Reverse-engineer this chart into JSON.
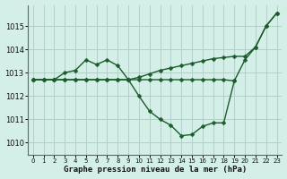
{
  "title": "Graphe pression niveau de la mer (hPa)",
  "background_color": "#d4eee8",
  "grid_color": "#b0d0cc",
  "line_color": "#1a5c2a",
  "xlim": [
    -0.5,
    23.5
  ],
  "ylim": [
    1009.5,
    1015.9
  ],
  "yticks": [
    1010,
    1011,
    1012,
    1013,
    1014,
    1015
  ],
  "xticks": [
    0,
    1,
    2,
    3,
    4,
    5,
    6,
    7,
    8,
    9,
    10,
    11,
    12,
    13,
    14,
    15,
    16,
    17,
    18,
    19,
    20,
    21,
    22,
    23
  ],
  "series": {
    "line_hump": {
      "x": [
        0,
        1,
        2,
        3,
        4,
        5,
        6,
        7,
        8,
        9
      ],
      "y": [
        1012.7,
        1012.7,
        1012.7,
        1013.0,
        1013.1,
        1013.55,
        1013.35,
        1013.55,
        1013.3,
        1012.7
      ]
    },
    "line_flat": {
      "x": [
        0,
        1,
        2,
        3,
        4,
        5,
        6,
        7,
        8,
        9,
        10,
        11,
        12,
        13,
        14,
        15,
        16,
        17,
        18,
        19
      ],
      "y": [
        1012.7,
        1012.7,
        1012.7,
        1012.7,
        1012.7,
        1012.7,
        1012.7,
        1012.7,
        1012.7,
        1012.7,
        1012.7,
        1012.7,
        1012.7,
        1012.7,
        1012.7,
        1012.7,
        1012.7,
        1012.7,
        1012.7,
        1012.65
      ]
    },
    "line_rise": {
      "x": [
        0,
        1,
        2,
        3,
        4,
        5,
        6,
        7,
        8,
        9,
        10,
        11,
        12,
        13,
        14,
        15,
        16,
        17,
        18,
        19,
        20,
        21,
        22,
        23
      ],
      "y": [
        1012.7,
        1012.7,
        1012.7,
        1012.7,
        1012.7,
        1012.7,
        1012.7,
        1012.7,
        1012.7,
        1012.7,
        1012.8,
        1012.95,
        1013.1,
        1013.2,
        1013.3,
        1013.4,
        1013.5,
        1013.6,
        1013.65,
        1013.7,
        1013.7,
        1014.1,
        1015.0,
        1015.55
      ]
    },
    "line_dip": {
      "x": [
        9,
        10,
        11,
        12,
        13,
        14,
        15,
        16,
        17,
        18,
        19,
        20,
        21,
        22,
        23
      ],
      "y": [
        1012.7,
        1012.0,
        1011.35,
        1011.0,
        1010.75,
        1010.3,
        1010.35,
        1010.7,
        1010.85,
        1010.85,
        1012.65,
        1013.55,
        1014.1,
        1015.0,
        1015.55
      ]
    }
  },
  "marker": "D",
  "markersize": 2.5,
  "linewidth": 1.0
}
